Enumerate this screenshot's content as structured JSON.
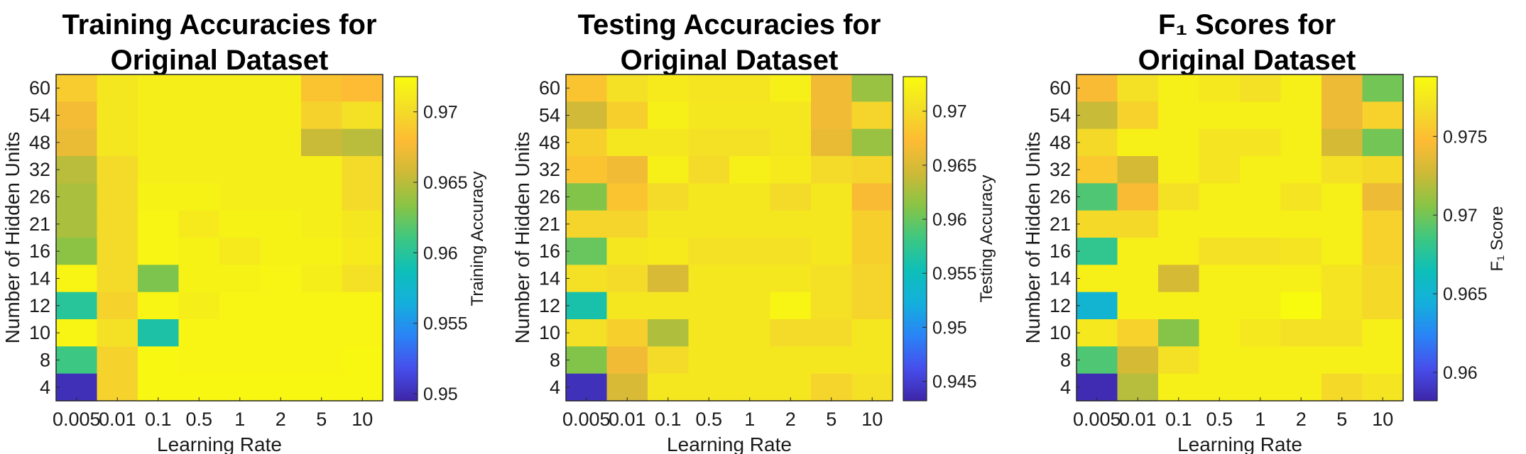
{
  "chart_data": [
    {
      "type": "heatmap",
      "title": [
        "Training Accuracies for",
        "Original Dataset"
      ],
      "xlabel": "Learning Rate",
      "ylabel": "Number of Hidden Units",
      "colorbar_label": "Training Accuracy",
      "colormap": "parula",
      "x_categories": [
        "0.005",
        "0.01",
        "0.1",
        "0.5",
        "1",
        "2",
        "5",
        "10"
      ],
      "y_categories": [
        "60",
        "54",
        "48",
        "32",
        "26",
        "21",
        "16",
        "14",
        "12",
        "10",
        "8",
        "4"
      ],
      "clim": [
        0.9495,
        0.9725
      ],
      "colorbar_ticks": [
        0.95,
        0.955,
        0.96,
        0.965,
        0.97
      ],
      "colorbar_ticklabels": [
        "0.95",
        "0.955",
        "0.96",
        "0.965",
        "0.97"
      ],
      "values": [
        [
          0.969,
          0.971,
          0.9715,
          0.9715,
          0.9715,
          0.9715,
          0.9685,
          0.968
        ],
        [
          0.9675,
          0.971,
          0.9715,
          0.9715,
          0.9715,
          0.9715,
          0.9695,
          0.9705
        ],
        [
          0.967,
          0.971,
          0.9715,
          0.9715,
          0.9715,
          0.9715,
          0.9655,
          0.965
        ],
        [
          0.965,
          0.97,
          0.9715,
          0.9715,
          0.9715,
          0.9715,
          0.9715,
          0.97
        ],
        [
          0.9645,
          0.97,
          0.9718,
          0.9718,
          0.9715,
          0.9715,
          0.9715,
          0.97
        ],
        [
          0.9645,
          0.97,
          0.972,
          0.9712,
          0.9718,
          0.9718,
          0.9715,
          0.971
        ],
        [
          0.9635,
          0.97,
          0.972,
          0.9718,
          0.9712,
          0.9718,
          0.9718,
          0.9712
        ],
        [
          0.972,
          0.97,
          0.963,
          0.9718,
          0.9718,
          0.972,
          0.9715,
          0.9705
        ],
        [
          0.96,
          0.9695,
          0.972,
          0.9715,
          0.972,
          0.972,
          0.972,
          0.972
        ],
        [
          0.972,
          0.9705,
          0.9595,
          0.972,
          0.972,
          0.972,
          0.972,
          0.972
        ],
        [
          0.961,
          0.9695,
          0.9722,
          0.972,
          0.972,
          0.972,
          0.972,
          0.9722
        ],
        [
          0.95,
          0.9695,
          0.9722,
          0.9722,
          0.9722,
          0.9722,
          0.9722,
          0.9722
        ]
      ]
    },
    {
      "type": "heatmap",
      "title": [
        "Testing Accuracies for",
        "Original Dataset"
      ],
      "xlabel": "Learning Rate",
      "ylabel": "Number of Hidden Units",
      "colorbar_label": "Testing Accuracy",
      "colormap": "parula",
      "x_categories": [
        "0.005",
        "0.01",
        "0.1",
        "0.5",
        "1",
        "2",
        "5",
        "10"
      ],
      "y_categories": [
        "60",
        "54",
        "48",
        "32",
        "26",
        "21",
        "16",
        "14",
        "12",
        "10",
        "8",
        "4"
      ],
      "clim": [
        0.9432,
        0.9732
      ],
      "colorbar_ticks": [
        0.945,
        0.95,
        0.955,
        0.96,
        0.965,
        0.97
      ],
      "colorbar_ticklabels": [
        "0.945",
        "0.95",
        "0.955",
        "0.96",
        "0.965",
        "0.97"
      ],
      "values": [
        [
          0.968,
          0.9705,
          0.9715,
          0.971,
          0.971,
          0.972,
          0.9665,
          0.962
        ],
        [
          0.9645,
          0.969,
          0.972,
          0.9712,
          0.9712,
          0.9712,
          0.9665,
          0.9695
        ],
        [
          0.969,
          0.9712,
          0.9712,
          0.9705,
          0.9705,
          0.9712,
          0.966,
          0.962
        ],
        [
          0.968,
          0.9665,
          0.972,
          0.97,
          0.972,
          0.9715,
          0.97,
          0.9695
        ],
        [
          0.961,
          0.968,
          0.97,
          0.9712,
          0.9712,
          0.97,
          0.9712,
          0.967
        ],
        [
          0.9695,
          0.9695,
          0.9712,
          0.9712,
          0.9712,
          0.9712,
          0.9712,
          0.969
        ],
        [
          0.96,
          0.9712,
          0.9715,
          0.9705,
          0.9705,
          0.9705,
          0.9712,
          0.969
        ],
        [
          0.9705,
          0.97,
          0.965,
          0.9712,
          0.9712,
          0.9712,
          0.9705,
          0.9695
        ],
        [
          0.956,
          0.9712,
          0.9712,
          0.9712,
          0.9712,
          0.9725,
          0.9705,
          0.9695
        ],
        [
          0.9705,
          0.969,
          0.963,
          0.9712,
          0.9712,
          0.97,
          0.97,
          0.9712
        ],
        [
          0.961,
          0.9665,
          0.97,
          0.9712,
          0.9712,
          0.9712,
          0.9712,
          0.9712
        ],
        [
          0.944,
          0.965,
          0.9712,
          0.9712,
          0.9712,
          0.9712,
          0.9695,
          0.9705
        ]
      ]
    },
    {
      "type": "heatmap",
      "title": [
        "F₁ Scores for",
        "Original Dataset"
      ],
      "xlabel": "Learning Rate",
      "ylabel": "Number of Hidden Units",
      "colorbar_label": "F₁ Score",
      "colormap": "parula",
      "x_categories": [
        "0.005",
        "0.01",
        "0.1",
        "0.5",
        "1",
        "2",
        "5",
        "10"
      ],
      "y_categories": [
        "60",
        "54",
        "48",
        "32",
        "26",
        "21",
        "16",
        "14",
        "12",
        "10",
        "8",
        "4"
      ],
      "clim": [
        0.9582,
        0.9788
      ],
      "colorbar_ticks": [
        0.96,
        0.965,
        0.97,
        0.975
      ],
      "colorbar_ticklabels": [
        "0.96",
        "0.965",
        "0.97",
        "0.975"
      ],
      "values": [
        [
          0.9745,
          0.977,
          0.978,
          0.9775,
          0.977,
          0.978,
          0.974,
          0.97
        ],
        [
          0.9725,
          0.976,
          0.978,
          0.978,
          0.978,
          0.978,
          0.974,
          0.976
        ],
        [
          0.9765,
          0.978,
          0.978,
          0.9772,
          0.9772,
          0.978,
          0.973,
          0.97
        ],
        [
          0.9755,
          0.973,
          0.978,
          0.9772,
          0.978,
          0.978,
          0.977,
          0.9765
        ],
        [
          0.969,
          0.9745,
          0.977,
          0.978,
          0.978,
          0.9772,
          0.978,
          0.974
        ],
        [
          0.9765,
          0.9765,
          0.978,
          0.978,
          0.978,
          0.978,
          0.978,
          0.976
        ],
        [
          0.968,
          0.978,
          0.978,
          0.977,
          0.977,
          0.9772,
          0.978,
          0.976
        ],
        [
          0.978,
          0.978,
          0.973,
          0.978,
          0.978,
          0.978,
          0.9772,
          0.9765
        ],
        [
          0.965,
          0.978,
          0.978,
          0.978,
          0.978,
          0.9788,
          0.9772,
          0.9765
        ],
        [
          0.9775,
          0.976,
          0.9705,
          0.978,
          0.9775,
          0.977,
          0.977,
          0.978
        ],
        [
          0.969,
          0.973,
          0.977,
          0.978,
          0.978,
          0.978,
          0.978,
          0.978
        ],
        [
          0.9585,
          0.972,
          0.978,
          0.978,
          0.978,
          0.978,
          0.9765,
          0.9772
        ]
      ]
    }
  ]
}
